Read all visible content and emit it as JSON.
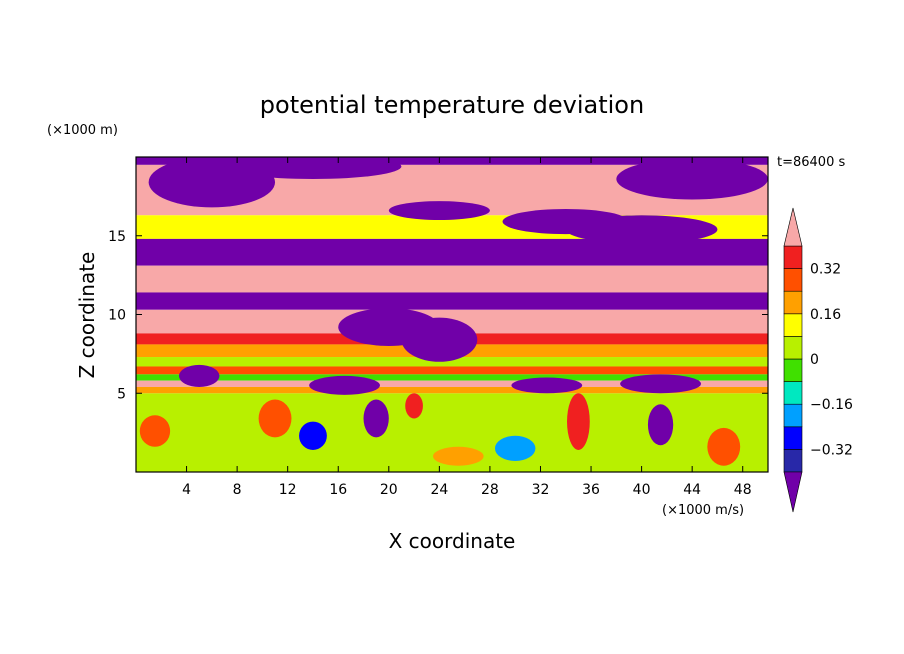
{
  "chart_data": {
    "type": "heatmap",
    "title": "potential temperature deviation",
    "xlabel": "X coordinate",
    "ylabel": "Z coordinate",
    "x_unit": "(×1000 m/s)",
    "y_unit": "(×1000 m)",
    "time_label": "t=86400 s",
    "xlim": [
      0,
      50
    ],
    "ylim": [
      0,
      20
    ],
    "x_ticks": [
      4,
      8,
      12,
      16,
      20,
      24,
      28,
      32,
      36,
      40,
      44,
      48
    ],
    "y_ticks": [
      5,
      10,
      15
    ],
    "grid": false,
    "legend_position": "right",
    "colorbar": {
      "levels": [
        -0.4,
        -0.32,
        -0.24,
        -0.16,
        -0.08,
        0,
        0.08,
        0.16,
        0.24,
        0.32,
        0.4
      ],
      "labeled": [
        0.32,
        0.16,
        0,
        -0.16,
        -0.32
      ],
      "labels": [
        "0.32",
        "0.16",
        "0",
        "−0.16",
        "−0.32"
      ],
      "colors": [
        "#7000a8",
        "#2828a8",
        "#0000ff",
        "#00a0ff",
        "#00e8c0",
        "#40e000",
        "#b8f000",
        "#ffff00",
        "#ffa000",
        "#ff5000",
        "#f02020",
        "#f8a8a8"
      ],
      "extend": "both"
    },
    "bands": [
      {
        "z": [
          19.5,
          20
        ],
        "value": -0.5
      },
      {
        "z": [
          16.3,
          19.5
        ],
        "value": 0.5
      },
      {
        "z": [
          14.8,
          16.3
        ],
        "value": 0.1
      },
      {
        "z": [
          13.1,
          14.8
        ],
        "value": -0.5
      },
      {
        "z": [
          11.4,
          13.1
        ],
        "value": 0.5
      },
      {
        "z": [
          10.3,
          11.4
        ],
        "value": -0.5
      },
      {
        "z": [
          8.8,
          10.3
        ],
        "value": 0.5
      },
      {
        "z": [
          8.1,
          8.8
        ],
        "value": 0.36
      },
      {
        "z": [
          7.3,
          8.1
        ],
        "value": 0.2
      },
      {
        "z": [
          6.7,
          7.3
        ],
        "value": 0.05
      },
      {
        "z": [
          6.2,
          6.7
        ],
        "value": 0.25
      },
      {
        "z": [
          5.8,
          6.2
        ],
        "value": -0.05
      },
      {
        "z": [
          5.4,
          5.8
        ],
        "value": 0.5
      },
      {
        "z": [
          5.0,
          5.4
        ],
        "value": 0.2
      }
    ],
    "blobs": [
      {
        "x": 6,
        "z": 18.4,
        "rx": 5,
        "rz": 1.6,
        "value": -0.5
      },
      {
        "x": 14,
        "z": 19.4,
        "rx": 7,
        "rz": 0.8,
        "value": -0.5
      },
      {
        "x": 44,
        "z": 18.6,
        "rx": 6,
        "rz": 1.3,
        "value": -0.5
      },
      {
        "x": 34,
        "z": 15.9,
        "rx": 5,
        "rz": 0.8,
        "value": -0.5
      },
      {
        "x": 40,
        "z": 15.4,
        "rx": 6,
        "rz": 0.9,
        "value": -0.5
      },
      {
        "x": 24,
        "z": 16.6,
        "rx": 4,
        "rz": 0.6,
        "value": -0.5
      },
      {
        "x": 20,
        "z": 9.2,
        "rx": 4,
        "rz": 1.2,
        "value": -0.5
      },
      {
        "x": 24,
        "z": 8.4,
        "rx": 3,
        "rz": 1.4,
        "value": -0.5
      },
      {
        "x": 5,
        "z": 6.1,
        "rx": 1.6,
        "rz": 0.7,
        "value": -0.5
      },
      {
        "x": 16.5,
        "z": 5.5,
        "rx": 2.8,
        "rz": 0.6,
        "value": -0.5
      },
      {
        "x": 32.5,
        "z": 5.5,
        "rx": 2.8,
        "rz": 0.5,
        "value": -0.5
      },
      {
        "x": 41.5,
        "z": 5.6,
        "rx": 3.2,
        "rz": 0.6,
        "value": -0.5
      },
      {
        "x": 19,
        "z": 3.4,
        "rx": 1.0,
        "rz": 1.2,
        "value": -0.45
      },
      {
        "x": 41.5,
        "z": 3.0,
        "rx": 1.0,
        "rz": 1.3,
        "value": -0.45
      },
      {
        "x": 14,
        "z": 2.3,
        "rx": 1.1,
        "rz": 0.9,
        "value": -0.3
      },
      {
        "x": 30,
        "z": 1.5,
        "rx": 1.6,
        "rz": 0.8,
        "value": -0.2
      },
      {
        "x": 1.5,
        "z": 2.6,
        "rx": 1.2,
        "rz": 1.0,
        "value": 0.26
      },
      {
        "x": 11,
        "z": 3.4,
        "rx": 1.3,
        "rz": 1.2,
        "value": 0.26
      },
      {
        "x": 35,
        "z": 3.2,
        "rx": 0.9,
        "rz": 1.8,
        "value": 0.34
      },
      {
        "x": 46.5,
        "z": 1.6,
        "rx": 1.3,
        "rz": 1.2,
        "value": 0.3
      },
      {
        "x": 22,
        "z": 4.2,
        "rx": 0.7,
        "rz": 0.8,
        "value": 0.36
      },
      {
        "x": 25.5,
        "z": 1.0,
        "rx": 2.0,
        "rz": 0.6,
        "value": 0.18
      }
    ]
  }
}
